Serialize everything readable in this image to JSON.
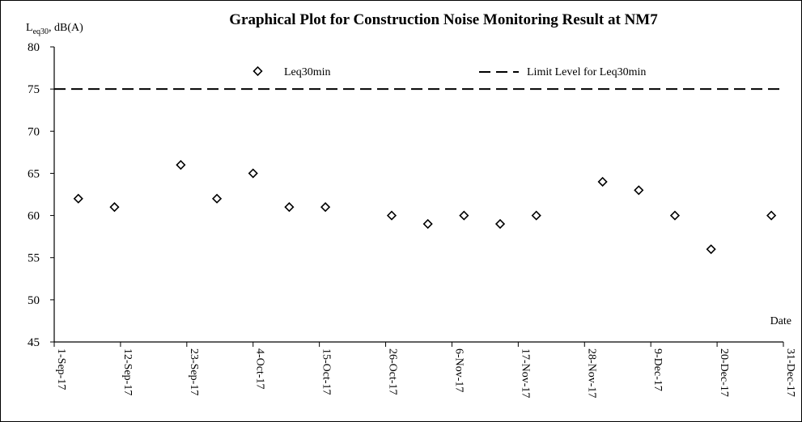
{
  "chart_data": {
    "type": "scatter",
    "title": "Graphical Plot for Construction Noise Monitoring Result at NM7",
    "ylabel": {
      "main": "L",
      "sub": "eq30",
      "tail": ", dB(A)"
    },
    "xlabel": "Date",
    "ylim": [
      45,
      80
    ],
    "yticks": [
      45,
      50,
      55,
      60,
      65,
      70,
      75,
      80
    ],
    "xlim": [
      "2017-09-01",
      "2017-12-31"
    ],
    "xticks": [
      {
        "date": "2017-09-01",
        "label": "1-Sep-17"
      },
      {
        "date": "2017-09-12",
        "label": "12-Sep-17"
      },
      {
        "date": "2017-09-23",
        "label": "23-Sep-17"
      },
      {
        "date": "2017-10-04",
        "label": "4-Oct-17"
      },
      {
        "date": "2017-10-15",
        "label": "15-Oct-17"
      },
      {
        "date": "2017-10-26",
        "label": "26-Oct-17"
      },
      {
        "date": "2017-11-06",
        "label": "6-Nov-17"
      },
      {
        "date": "2017-11-17",
        "label": "17-Nov-17"
      },
      {
        "date": "2017-11-28",
        "label": "28-Nov-17"
      },
      {
        "date": "2017-12-09",
        "label": "9-Dec-17"
      },
      {
        "date": "2017-12-20",
        "label": "20-Dec-17"
      },
      {
        "date": "2017-12-31",
        "label": "31-Dec-17"
      }
    ],
    "series": [
      {
        "name": "Leq30min",
        "marker": "diamond-open",
        "color": "#000000",
        "points": [
          {
            "x": "2017-09-05",
            "y": 62
          },
          {
            "x": "2017-09-11",
            "y": 61
          },
          {
            "x": "2017-09-22",
            "y": 66
          },
          {
            "x": "2017-09-28",
            "y": 62
          },
          {
            "x": "2017-10-04",
            "y": 65
          },
          {
            "x": "2017-10-10",
            "y": 61
          },
          {
            "x": "2017-10-16",
            "y": 61
          },
          {
            "x": "2017-10-27",
            "y": 60
          },
          {
            "x": "2017-11-02",
            "y": 59
          },
          {
            "x": "2017-11-08",
            "y": 60
          },
          {
            "x": "2017-11-14",
            "y": 59
          },
          {
            "x": "2017-11-20",
            "y": 60
          },
          {
            "x": "2017-12-01",
            "y": 64
          },
          {
            "x": "2017-12-07",
            "y": 63
          },
          {
            "x": "2017-12-13",
            "y": 60
          },
          {
            "x": "2017-12-19",
            "y": 56
          },
          {
            "x": "2017-12-29",
            "y": 60
          }
        ]
      }
    ],
    "limit_line": {
      "name": "Limit Level for Leq30min",
      "value": 75,
      "style": "dashed",
      "color": "#000000"
    },
    "grid": false,
    "legend_position": "top"
  }
}
